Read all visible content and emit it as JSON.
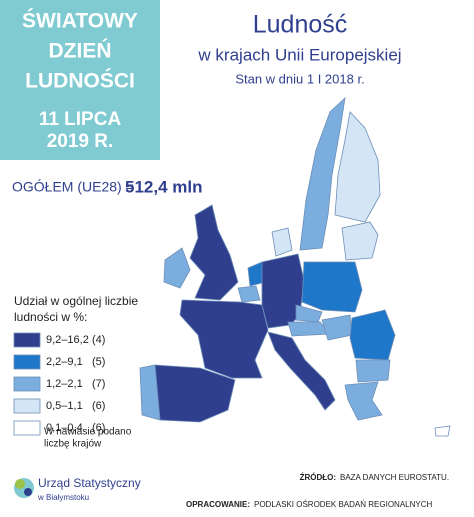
{
  "banner": {
    "lines": [
      "ŚWIATOWY",
      "DZIEŃ",
      "LUDNOŚCI"
    ],
    "date_lines": [
      "11 LIPCA",
      "2019 R."
    ]
  },
  "header": {
    "title": "Ludność",
    "subtitle": "w krajach Unii Europejskiej",
    "date": "Stan w dniu 1 I 2018 r."
  },
  "total": {
    "label": "OGÓŁEM (UE28) =",
    "value": "512,4 mln"
  },
  "legend": {
    "title_lines": [
      "Udział w ogólnej liczbie",
      "ludności w %:"
    ],
    "items": [
      {
        "range": "9,2–16,2",
        "count": "(4)",
        "color": "#2f3f8e"
      },
      {
        "range": "2,2–9,1",
        "count": "(5)",
        "color": "#1f77c9"
      },
      {
        "range": "1,2–2,1",
        "count": "(7)",
        "color": "#7badde"
      },
      {
        "range": "0,5–1,1",
        "count": "(6)",
        "color": "#d4e5f6"
      },
      {
        "range": "0,1–0,4",
        "count": "(6)",
        "color": "#ffffff"
      }
    ],
    "note_lines": [
      "W nawiasie podano",
      "liczbę krajów"
    ]
  },
  "logo": {
    "name": "Urząd Statystyczny",
    "place": "w Białymstoku"
  },
  "footer": {
    "source_label": "ŹRÓDŁO:",
    "source": "BAZA DANYCH EUROSTATU.",
    "author_label": "OPRACOWANIE:",
    "author": "PODLASKI OŚRODEK BADAŃ REGIONALNYCH"
  }
}
